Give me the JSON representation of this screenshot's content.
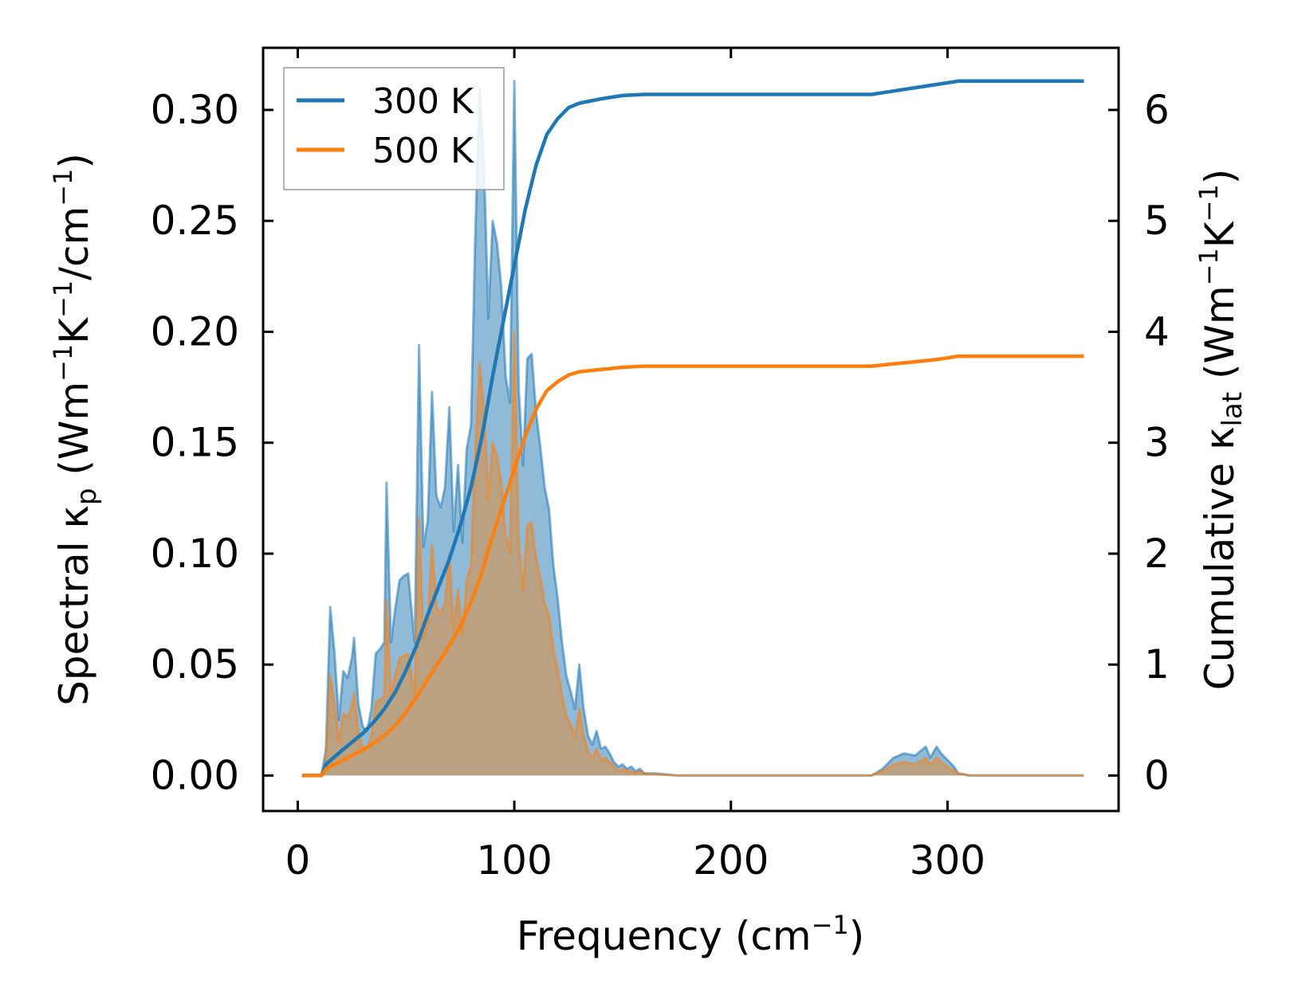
{
  "chart_data": {
    "type": "area",
    "xlabel": "Frequency (cm⁻¹)",
    "xlabel_parts": {
      "main": "Frequency (cm",
      "sup": "−1",
      "end": ")"
    },
    "ylabel_left_parts": {
      "a": "Spectral κ",
      "sub": "p",
      "b": " (Wm",
      "sup1": "−1",
      "c": "K",
      "sup2": "−1",
      "d": "/cm",
      "sup3": "−1",
      "e": ")"
    },
    "ylabel_right_parts": {
      "a": "Cumulative κ",
      "sub": "lat",
      "b": " (Wm",
      "sup1": "−1",
      "c": "K",
      "sup2": "−1",
      "d": ")"
    },
    "xlim": [
      -16,
      379
    ],
    "ylim_left": [
      -0.016,
      0.328
    ],
    "ylim_right": [
      -0.32,
      6.56
    ],
    "x_ticks": [
      0,
      100,
      200,
      300
    ],
    "x_tick_labels": [
      "0",
      "100",
      "200",
      "300"
    ],
    "y_left_ticks": [
      0.0,
      0.05,
      0.1,
      0.15,
      0.2,
      0.25,
      0.3
    ],
    "y_left_tick_labels": [
      "0.00",
      "0.05",
      "0.10",
      "0.15",
      "0.20",
      "0.25",
      "0.30"
    ],
    "y_right_ticks": [
      0,
      1,
      2,
      3,
      4,
      5,
      6
    ],
    "y_right_tick_labels": [
      "0",
      "1",
      "2",
      "3",
      "4",
      "5",
      "6"
    ],
    "legend": {
      "position": "top-left"
    },
    "series": [
      {
        "name": "300 K",
        "color": "#1f77b4",
        "fill": "#1f77b4",
        "spectral": [
          [
            2,
            0
          ],
          [
            11,
            0
          ],
          [
            13,
            0.012
          ],
          [
            15,
            0.076
          ],
          [
            17,
            0.055
          ],
          [
            19,
            0.025
          ],
          [
            21,
            0.047
          ],
          [
            23,
            0.044
          ],
          [
            25,
            0.053
          ],
          [
            26,
            0.062
          ],
          [
            28,
            0.032
          ],
          [
            30,
            0.022
          ],
          [
            32,
            0.02
          ],
          [
            34,
            0.03
          ],
          [
            36,
            0.055
          ],
          [
            38,
            0.057
          ],
          [
            40,
            0.06
          ],
          [
            41,
            0.132
          ],
          [
            43,
            0.06
          ],
          [
            45,
            0.075
          ],
          [
            47,
            0.088
          ],
          [
            49,
            0.09
          ],
          [
            51,
            0.091
          ],
          [
            53,
            0.07
          ],
          [
            54,
            0.06
          ],
          [
            56,
            0.194
          ],
          [
            58,
            0.103
          ],
          [
            60,
            0.115
          ],
          [
            62,
            0.173
          ],
          [
            64,
            0.126
          ],
          [
            66,
            0.121
          ],
          [
            68,
            0.13
          ],
          [
            70,
            0.166
          ],
          [
            72,
            0.11
          ],
          [
            74,
            0.14
          ],
          [
            76,
            0.105
          ],
          [
            78,
            0.147
          ],
          [
            80,
            0.158
          ],
          [
            82,
            0.245
          ],
          [
            84,
            0.31
          ],
          [
            86,
            0.275
          ],
          [
            88,
            0.206
          ],
          [
            90,
            0.25
          ],
          [
            92,
            0.24
          ],
          [
            94,
            0.22
          ],
          [
            96,
            0.18
          ],
          [
            98,
            0.168
          ],
          [
            100,
            0.313
          ],
          [
            102,
            0.175
          ],
          [
            104,
            0.14
          ],
          [
            106,
            0.188
          ],
          [
            108,
            0.19
          ],
          [
            110,
            0.164
          ],
          [
            112,
            0.148
          ],
          [
            114,
            0.13
          ],
          [
            116,
            0.12
          ],
          [
            118,
            0.095
          ],
          [
            120,
            0.08
          ],
          [
            122,
            0.06
          ],
          [
            124,
            0.045
          ],
          [
            126,
            0.038
          ],
          [
            128,
            0.03
          ],
          [
            130,
            0.05
          ],
          [
            132,
            0.03
          ],
          [
            134,
            0.018
          ],
          [
            136,
            0.014
          ],
          [
            138,
            0.02
          ],
          [
            140,
            0.012
          ],
          [
            142,
            0.013
          ],
          [
            144,
            0.01
          ],
          [
            146,
            0.006
          ],
          [
            148,
            0.004
          ],
          [
            150,
            0.005
          ],
          [
            152,
            0.003
          ],
          [
            154,
            0.004
          ],
          [
            156,
            0.002
          ],
          [
            158,
            0.003
          ],
          [
            160,
            0.001
          ],
          [
            165,
            0.001
          ],
          [
            170,
            0.0005
          ],
          [
            175,
            0
          ],
          [
            265,
            0
          ],
          [
            270,
            0.003
          ],
          [
            275,
            0.008
          ],
          [
            280,
            0.01
          ],
          [
            285,
            0.009
          ],
          [
            290,
            0.013
          ],
          [
            292,
            0.008
          ],
          [
            295,
            0.013
          ],
          [
            297,
            0.01
          ],
          [
            300,
            0.007
          ],
          [
            303,
            0.004
          ],
          [
            305,
            0.001
          ],
          [
            310,
            0
          ],
          [
            363,
            0
          ]
        ],
        "cumulative": [
          [
            2,
            0
          ],
          [
            11,
            0
          ],
          [
            13,
            0.1
          ],
          [
            20,
            0.22
          ],
          [
            25,
            0.3
          ],
          [
            30,
            0.38
          ],
          [
            35,
            0.48
          ],
          [
            40,
            0.6
          ],
          [
            45,
            0.75
          ],
          [
            50,
            0.95
          ],
          [
            55,
            1.18
          ],
          [
            60,
            1.45
          ],
          [
            65,
            1.7
          ],
          [
            70,
            1.95
          ],
          [
            75,
            2.25
          ],
          [
            80,
            2.6
          ],
          [
            85,
            3.05
          ],
          [
            90,
            3.6
          ],
          [
            95,
            4.1
          ],
          [
            100,
            4.6
          ],
          [
            105,
            5.1
          ],
          [
            110,
            5.5
          ],
          [
            115,
            5.78
          ],
          [
            120,
            5.92
          ],
          [
            125,
            6.02
          ],
          [
            130,
            6.06
          ],
          [
            140,
            6.1
          ],
          [
            150,
            6.13
          ],
          [
            160,
            6.14
          ],
          [
            180,
            6.14
          ],
          [
            265,
            6.14
          ],
          [
            275,
            6.17
          ],
          [
            285,
            6.2
          ],
          [
            295,
            6.23
          ],
          [
            305,
            6.26
          ],
          [
            363,
            6.26
          ]
        ]
      },
      {
        "name": "500 K",
        "color": "#ff7f0e",
        "fill": "#c49b6c",
        "spectral": [
          [
            2,
            0
          ],
          [
            11,
            0
          ],
          [
            13,
            0.007
          ],
          [
            15,
            0.045
          ],
          [
            17,
            0.032
          ],
          [
            19,
            0.015
          ],
          [
            21,
            0.028
          ],
          [
            23,
            0.026
          ],
          [
            25,
            0.032
          ],
          [
            26,
            0.037
          ],
          [
            28,
            0.019
          ],
          [
            30,
            0.013
          ],
          [
            32,
            0.012
          ],
          [
            34,
            0.018
          ],
          [
            36,
            0.033
          ],
          [
            38,
            0.034
          ],
          [
            40,
            0.036
          ],
          [
            41,
            0.079
          ],
          [
            43,
            0.036
          ],
          [
            45,
            0.045
          ],
          [
            47,
            0.053
          ],
          [
            49,
            0.054
          ],
          [
            51,
            0.055
          ],
          [
            53,
            0.042
          ],
          [
            54,
            0.036
          ],
          [
            56,
            0.116
          ],
          [
            58,
            0.062
          ],
          [
            60,
            0.069
          ],
          [
            62,
            0.104
          ],
          [
            64,
            0.076
          ],
          [
            66,
            0.073
          ],
          [
            68,
            0.078
          ],
          [
            70,
            0.1
          ],
          [
            72,
            0.066
          ],
          [
            74,
            0.084
          ],
          [
            76,
            0.063
          ],
          [
            78,
            0.088
          ],
          [
            80,
            0.095
          ],
          [
            82,
            0.147
          ],
          [
            84,
            0.186
          ],
          [
            86,
            0.165
          ],
          [
            88,
            0.124
          ],
          [
            90,
            0.15
          ],
          [
            92,
            0.144
          ],
          [
            94,
            0.132
          ],
          [
            96,
            0.108
          ],
          [
            98,
            0.101
          ],
          [
            100,
            0.2
          ],
          [
            102,
            0.105
          ],
          [
            104,
            0.084
          ],
          [
            106,
            0.113
          ],
          [
            108,
            0.114
          ],
          [
            110,
            0.098
          ],
          [
            112,
            0.089
          ],
          [
            114,
            0.078
          ],
          [
            116,
            0.072
          ],
          [
            118,
            0.057
          ],
          [
            120,
            0.048
          ],
          [
            122,
            0.036
          ],
          [
            124,
            0.027
          ],
          [
            126,
            0.023
          ],
          [
            128,
            0.018
          ],
          [
            130,
            0.03
          ],
          [
            132,
            0.018
          ],
          [
            134,
            0.011
          ],
          [
            136,
            0.008
          ],
          [
            138,
            0.012
          ],
          [
            140,
            0.007
          ],
          [
            142,
            0.008
          ],
          [
            144,
            0.006
          ],
          [
            146,
            0.004
          ],
          [
            148,
            0.002
          ],
          [
            150,
            0.003
          ],
          [
            152,
            0.002
          ],
          [
            154,
            0.002
          ],
          [
            156,
            0.001
          ],
          [
            158,
            0.002
          ],
          [
            160,
            0.001
          ],
          [
            165,
            0.0005
          ],
          [
            170,
            0.0003
          ],
          [
            175,
            0
          ],
          [
            265,
            0
          ],
          [
            270,
            0.002
          ],
          [
            275,
            0.005
          ],
          [
            280,
            0.006
          ],
          [
            285,
            0.005
          ],
          [
            290,
            0.008
          ],
          [
            292,
            0.005
          ],
          [
            295,
            0.008
          ],
          [
            297,
            0.006
          ],
          [
            300,
            0.004
          ],
          [
            303,
            0.002
          ],
          [
            305,
            0.001
          ],
          [
            310,
            0
          ],
          [
            363,
            0
          ]
        ],
        "cumulative": [
          [
            2,
            0
          ],
          [
            11,
            0
          ],
          [
            13,
            0.06
          ],
          [
            20,
            0.13
          ],
          [
            25,
            0.18
          ],
          [
            30,
            0.23
          ],
          [
            35,
            0.29
          ],
          [
            40,
            0.36
          ],
          [
            45,
            0.45
          ],
          [
            50,
            0.57
          ],
          [
            55,
            0.71
          ],
          [
            60,
            0.87
          ],
          [
            65,
            1.02
          ],
          [
            70,
            1.17
          ],
          [
            75,
            1.35
          ],
          [
            80,
            1.56
          ],
          [
            85,
            1.83
          ],
          [
            90,
            2.16
          ],
          [
            95,
            2.46
          ],
          [
            100,
            2.76
          ],
          [
            105,
            3.06
          ],
          [
            110,
            3.3
          ],
          [
            115,
            3.47
          ],
          [
            120,
            3.55
          ],
          [
            125,
            3.61
          ],
          [
            130,
            3.64
          ],
          [
            140,
            3.66
          ],
          [
            150,
            3.68
          ],
          [
            160,
            3.69
          ],
          [
            180,
            3.69
          ],
          [
            265,
            3.69
          ],
          [
            275,
            3.71
          ],
          [
            285,
            3.73
          ],
          [
            295,
            3.75
          ],
          [
            305,
            3.78
          ],
          [
            363,
            3.78
          ]
        ]
      }
    ]
  }
}
